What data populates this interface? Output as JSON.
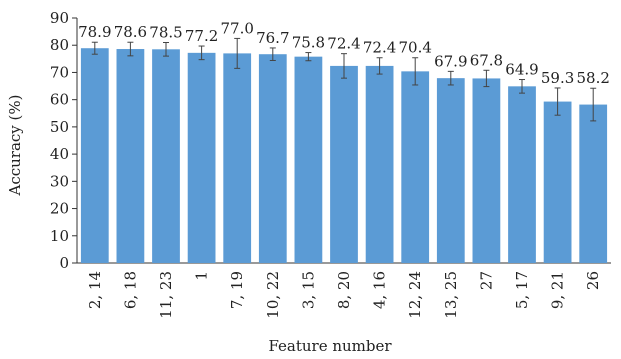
{
  "chart_data": {
    "type": "bar",
    "xlabel": "Feature number",
    "ylabel": "Accuracy (%)",
    "ylim": [
      0,
      90
    ],
    "yticks": [
      0,
      10,
      20,
      30,
      40,
      50,
      60,
      70,
      80,
      90
    ],
    "grid": false,
    "error_bars": true,
    "bar_color": "#5B9BD5",
    "categories": [
      "2, 14",
      "6, 18",
      "11, 23",
      "1",
      "7, 19",
      "10, 22",
      "3, 15",
      "8, 20",
      "4, 16",
      "12, 24",
      "13, 25",
      "27",
      "5, 17",
      "9, 21",
      "26"
    ],
    "values": [
      78.9,
      78.6,
      78.5,
      77.2,
      77.0,
      76.7,
      75.8,
      72.4,
      72.4,
      70.4,
      67.9,
      67.8,
      64.9,
      59.3,
      58.2
    ],
    "value_labels": [
      "78.9",
      "78.6",
      "78.5",
      "77.2",
      "77.0",
      "76.7",
      "75.8",
      "72.4",
      "72.4",
      "70.4",
      "67.9",
      "67.8",
      "64.9",
      "59.3",
      "58.2"
    ],
    "errors": [
      2.2,
      2.5,
      2.5,
      2.5,
      5.5,
      2.3,
      1.5,
      4.5,
      3.0,
      5.0,
      2.5,
      3.0,
      2.5,
      5.0,
      6.0
    ]
  }
}
